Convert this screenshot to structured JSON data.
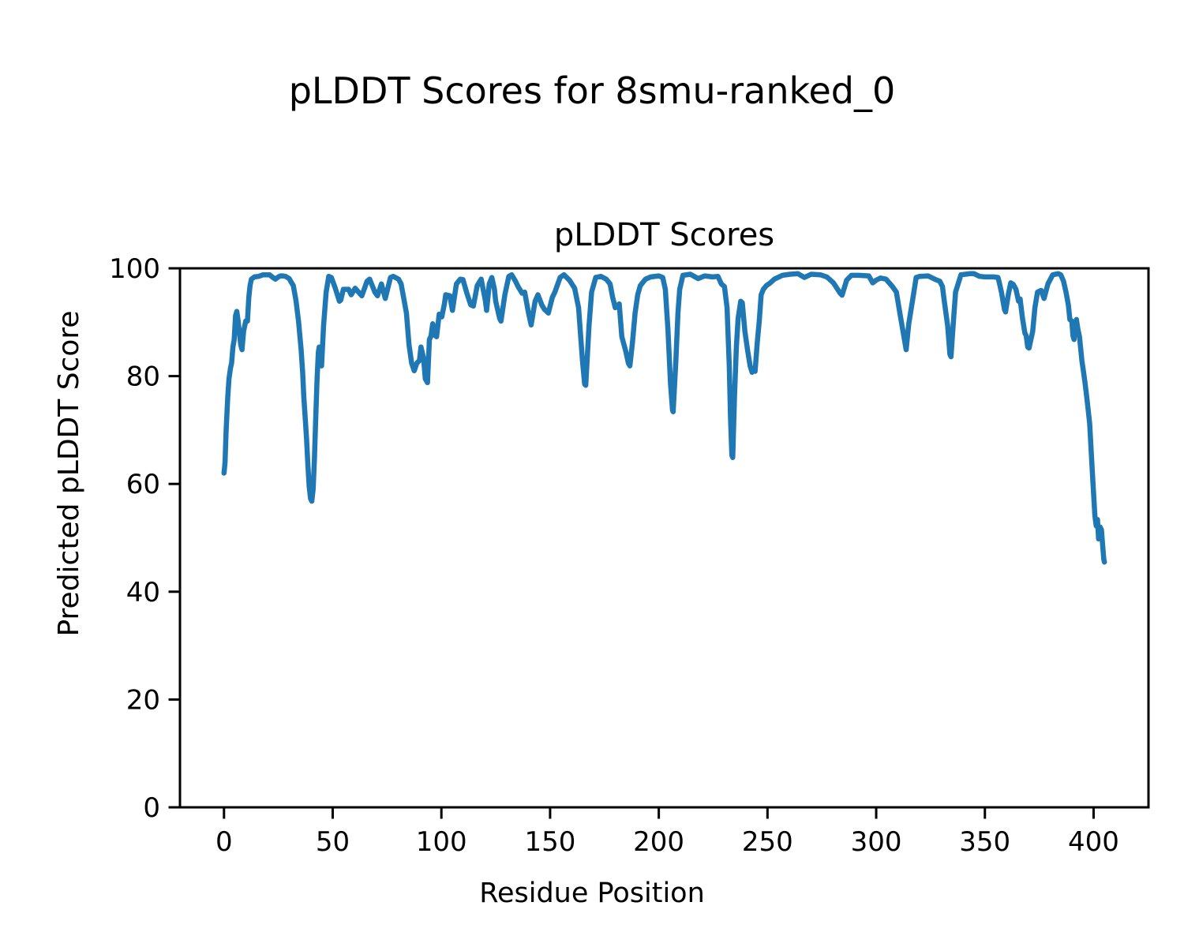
{
  "figure": {
    "suptitle": "pLDDT Scores for 8smu-ranked_0"
  },
  "chart_data": {
    "type": "line",
    "title": "pLDDT Scores",
    "xlabel": "Residue Position",
    "ylabel": "Predicted pLDDT Score",
    "xlim": [
      -20.25,
      425.25
    ],
    "ylim": [
      0,
      100
    ],
    "xticks": [
      0,
      50,
      100,
      150,
      200,
      250,
      300,
      350,
      400
    ],
    "yticks": [
      0,
      20,
      40,
      60,
      80,
      100
    ],
    "grid": false,
    "legend": "none",
    "line_color": "#1f77b4",
    "line_width": 6.5,
    "background": "#ffffff",
    "series": [
      {
        "name": "pLDDT",
        "points": [
          [
            0,
            62
          ],
          [
            0.5,
            64
          ],
          [
            1,
            70
          ],
          [
            1.7,
            76
          ],
          [
            2.3,
            79.5
          ],
          [
            3,
            81.5
          ],
          [
            3.5,
            82.4
          ],
          [
            4.1,
            85.4
          ],
          [
            4.7,
            86.8
          ],
          [
            5.3,
            91.2
          ],
          [
            5.9,
            92
          ],
          [
            6.5,
            90.2
          ],
          [
            7.7,
            85.8
          ],
          [
            8.3,
            84.9
          ],
          [
            9,
            88.3
          ],
          [
            10,
            90.2
          ],
          [
            10.8,
            90.2
          ],
          [
            11.4,
            94.6
          ],
          [
            12,
            96.8
          ],
          [
            12.6,
            98
          ],
          [
            14,
            98.4
          ],
          [
            16,
            98.5
          ],
          [
            18,
            98.8
          ],
          [
            20,
            98.8
          ],
          [
            21,
            98.8
          ],
          [
            22.5,
            98.3
          ],
          [
            23.7,
            98
          ],
          [
            25,
            98.4
          ],
          [
            26,
            98.6
          ],
          [
            27,
            98.6
          ],
          [
            28.3,
            98.5
          ],
          [
            30,
            98.1
          ],
          [
            30.7,
            97.6
          ],
          [
            31.9,
            96.8
          ],
          [
            33.1,
            94.1
          ],
          [
            34.3,
            90.2
          ],
          [
            35.5,
            84.9
          ],
          [
            36.2,
            80.5
          ],
          [
            36.7,
            76.1
          ],
          [
            37.3,
            72.6
          ],
          [
            38,
            68.3
          ],
          [
            38.6,
            63.4
          ],
          [
            39.2,
            59.5
          ],
          [
            39.8,
            57.3
          ],
          [
            40.4,
            56.8
          ],
          [
            41,
            59
          ],
          [
            41.6,
            64.4
          ],
          [
            42.2,
            72.2
          ],
          [
            42.8,
            79.5
          ],
          [
            43.4,
            84.4
          ],
          [
            43.8,
            85.4
          ],
          [
            44.3,
            82
          ],
          [
            44.9,
            81.9
          ],
          [
            45.8,
            89.3
          ],
          [
            47,
            95.6
          ],
          [
            48.2,
            98.5
          ],
          [
            49.4,
            98.3
          ],
          [
            51.2,
            96.3
          ],
          [
            53.1,
            93.9
          ],
          [
            53.7,
            94.1
          ],
          [
            54.9,
            96.1
          ],
          [
            57.3,
            96.1
          ],
          [
            58.5,
            95.1
          ],
          [
            60.3,
            96.3
          ],
          [
            63.4,
            94.9
          ],
          [
            65.8,
            97.6
          ],
          [
            67,
            98
          ],
          [
            69.4,
            95.6
          ],
          [
            70.6,
            94.9
          ],
          [
            72.4,
            97.1
          ],
          [
            74.2,
            94.4
          ],
          [
            76.6,
            98.3
          ],
          [
            77.9,
            98.5
          ],
          [
            80.3,
            98
          ],
          [
            81.5,
            97.1
          ],
          [
            83.9,
            91.7
          ],
          [
            85.1,
            85.8
          ],
          [
            86.3,
            82.4
          ],
          [
            87.5,
            81
          ],
          [
            88.7,
            82.4
          ],
          [
            89.9,
            82.9
          ],
          [
            90.6,
            85.4
          ],
          [
            91.8,
            83.4
          ],
          [
            92.6,
            79.5
          ],
          [
            93.6,
            78.8
          ],
          [
            94.5,
            86.8
          ],
          [
            95.2,
            87.4
          ],
          [
            96,
            89.7
          ],
          [
            97,
            87.6
          ],
          [
            97.8,
            87.3
          ],
          [
            99,
            91.5
          ],
          [
            100.2,
            91
          ],
          [
            101.4,
            93.4
          ],
          [
            102,
            95.1
          ],
          [
            103.9,
            94.9
          ],
          [
            105.1,
            92.2
          ],
          [
            106.9,
            97.1
          ],
          [
            108.7,
            98
          ],
          [
            109.9,
            97.9
          ],
          [
            111.7,
            95.4
          ],
          [
            113.5,
            93.2
          ],
          [
            114.7,
            93
          ],
          [
            116.5,
            96.8
          ],
          [
            118.3,
            98
          ],
          [
            120.2,
            94.1
          ],
          [
            120.8,
            92.2
          ],
          [
            122,
            97.1
          ],
          [
            123.2,
            98.3
          ],
          [
            124.4,
            96.1
          ],
          [
            125,
            93.9
          ],
          [
            126.8,
            90.7
          ],
          [
            127.4,
            90.2
          ],
          [
            129.2,
            95.1
          ],
          [
            131,
            98.5
          ],
          [
            132.3,
            98.8
          ],
          [
            134.1,
            97.6
          ],
          [
            135.3,
            96.6
          ],
          [
            137.1,
            95.4
          ],
          [
            138.3,
            95.6
          ],
          [
            140.1,
            91.7
          ],
          [
            141.3,
            89.5
          ],
          [
            143.1,
            93.9
          ],
          [
            144.4,
            95.1
          ],
          [
            146.2,
            93.2
          ],
          [
            147.4,
            92.4
          ],
          [
            149.2,
            91.7
          ],
          [
            151,
            94.6
          ],
          [
            152.2,
            95.6
          ],
          [
            154.6,
            98.3
          ],
          [
            156.4,
            98.8
          ],
          [
            158.9,
            97.8
          ],
          [
            161.3,
            96.3
          ],
          [
            163.1,
            92.7
          ],
          [
            164.9,
            82.9
          ],
          [
            165.9,
            78.5
          ],
          [
            166.4,
            78.3
          ],
          [
            167.9,
            89.3
          ],
          [
            169.1,
            95.6
          ],
          [
            171,
            98.3
          ],
          [
            173.4,
            98.5
          ],
          [
            175.8,
            98
          ],
          [
            177.6,
            97.1
          ],
          [
            178.8,
            94.6
          ],
          [
            180,
            92.7
          ],
          [
            181.8,
            93.4
          ],
          [
            183,
            87.3
          ],
          [
            184.8,
            84.6
          ],
          [
            186,
            82.4
          ],
          [
            186.7,
            81.9
          ],
          [
            187.9,
            86.3
          ],
          [
            189.1,
            91.7
          ],
          [
            190.3,
            95.1
          ],
          [
            191.5,
            96.8
          ],
          [
            193.9,
            98
          ],
          [
            196.3,
            98.4
          ],
          [
            200,
            98.6
          ],
          [
            201.8,
            98.3
          ],
          [
            203,
            96.1
          ],
          [
            204.2,
            88.7
          ],
          [
            205.4,
            78.5
          ],
          [
            206.3,
            73.7
          ],
          [
            206.6,
            73.4
          ],
          [
            207.8,
            82.4
          ],
          [
            208.8,
            91.7
          ],
          [
            209.6,
            96.1
          ],
          [
            211.1,
            98.7
          ],
          [
            214.5,
            98.9
          ],
          [
            218.1,
            98.1
          ],
          [
            221.1,
            98.6
          ],
          [
            224.8,
            98.4
          ],
          [
            227.2,
            98.5
          ],
          [
            228.8,
            97.1
          ],
          [
            230.2,
            96.6
          ],
          [
            231.4,
            92.7
          ],
          [
            232.4,
            81.9
          ],
          [
            233,
            72.2
          ],
          [
            233.6,
            65.3
          ],
          [
            234,
            64.9
          ],
          [
            234.8,
            76.1
          ],
          [
            235.7,
            85.4
          ],
          [
            236.5,
            90.7
          ],
          [
            237.7,
            93.9
          ],
          [
            238.4,
            93.6
          ],
          [
            239.6,
            88.3
          ],
          [
            240.8,
            84.9
          ],
          [
            242,
            81.9
          ],
          [
            242.9,
            80.7
          ],
          [
            243.7,
            81.4
          ],
          [
            244.3,
            80.9
          ],
          [
            245.3,
            86.3
          ],
          [
            246.2,
            90.2
          ],
          [
            247.1,
            95.1
          ],
          [
            248.1,
            96.1
          ],
          [
            249.5,
            96.8
          ],
          [
            251.3,
            97.3
          ],
          [
            253.2,
            98
          ],
          [
            256.8,
            98.7
          ],
          [
            260.4,
            98.9
          ],
          [
            264,
            99
          ],
          [
            267,
            98.3
          ],
          [
            270.1,
            98.9
          ],
          [
            274.3,
            98.8
          ],
          [
            277.3,
            98.4
          ],
          [
            280.3,
            97.3
          ],
          [
            283.4,
            95.4
          ],
          [
            284.3,
            95
          ],
          [
            286.4,
            97.8
          ],
          [
            288.6,
            98.7
          ],
          [
            292,
            98.7
          ],
          [
            296.6,
            98.6
          ],
          [
            298.4,
            97.3
          ],
          [
            300,
            97.8
          ],
          [
            302,
            98.2
          ],
          [
            304.5,
            98
          ],
          [
            307.5,
            96.6
          ],
          [
            309.3,
            95.6
          ],
          [
            311.1,
            91.2
          ],
          [
            313,
            86.8
          ],
          [
            313.8,
            84.9
          ],
          [
            315,
            89.7
          ],
          [
            316.5,
            93.5
          ],
          [
            318.4,
            98.3
          ],
          [
            320,
            98.5
          ],
          [
            323.9,
            98.6
          ],
          [
            326.9,
            98
          ],
          [
            329.3,
            97.6
          ],
          [
            330.5,
            96.6
          ],
          [
            331.1,
            94.6
          ],
          [
            332.9,
            89.3
          ],
          [
            333.9,
            84.1
          ],
          [
            334.4,
            83.6
          ],
          [
            335.5,
            90
          ],
          [
            336.5,
            95.6
          ],
          [
            339,
            98.8
          ],
          [
            341,
            98.9
          ],
          [
            343,
            99
          ],
          [
            345,
            99
          ],
          [
            347.5,
            98.5
          ],
          [
            350,
            98.4
          ],
          [
            352,
            98.4
          ],
          [
            354,
            98.4
          ],
          [
            356,
            98.3
          ],
          [
            356.5,
            97.6
          ],
          [
            357.6,
            95.6
          ],
          [
            359,
            92.4
          ],
          [
            359.5,
            91.9
          ],
          [
            360.8,
            95.2
          ],
          [
            361.9,
            97.3
          ],
          [
            363.1,
            97
          ],
          [
            364.3,
            96.1
          ],
          [
            365.5,
            93.9
          ],
          [
            366.2,
            94.3
          ],
          [
            367.3,
            90.7
          ],
          [
            368.4,
            88
          ],
          [
            369,
            87.5
          ],
          [
            369.7,
            85.4
          ],
          [
            370.3,
            85.2
          ],
          [
            372,
            88.3
          ],
          [
            373,
            92.7
          ],
          [
            374.2,
            95.6
          ],
          [
            375.9,
            95.9
          ],
          [
            377.2,
            94.4
          ],
          [
            379,
            97.1
          ],
          [
            381.2,
            98.8
          ],
          [
            383.7,
            99
          ],
          [
            384.9,
            98.8
          ],
          [
            386.2,
            97.6
          ],
          [
            387.3,
            95.6
          ],
          [
            388.4,
            93.2
          ],
          [
            389.1,
            90.5
          ],
          [
            390,
            90.2
          ],
          [
            390.5,
            87.5
          ],
          [
            391,
            86.8
          ],
          [
            392.1,
            90.5
          ],
          [
            392.8,
            88.7
          ],
          [
            393.5,
            87.3
          ],
          [
            394.6,
            82.9
          ],
          [
            395.3,
            81
          ],
          [
            396,
            79
          ],
          [
            397,
            75.6
          ],
          [
            398.2,
            71.2
          ],
          [
            399.4,
            62.4
          ],
          [
            400.6,
            54.1
          ],
          [
            401.2,
            52.2
          ],
          [
            401.8,
            53.4
          ],
          [
            402.3,
            49.8
          ],
          [
            403,
            52
          ],
          [
            403.6,
            51.5
          ],
          [
            404.2,
            48.5
          ],
          [
            404.7,
            46
          ],
          [
            405,
            45.5
          ]
        ]
      }
    ]
  }
}
